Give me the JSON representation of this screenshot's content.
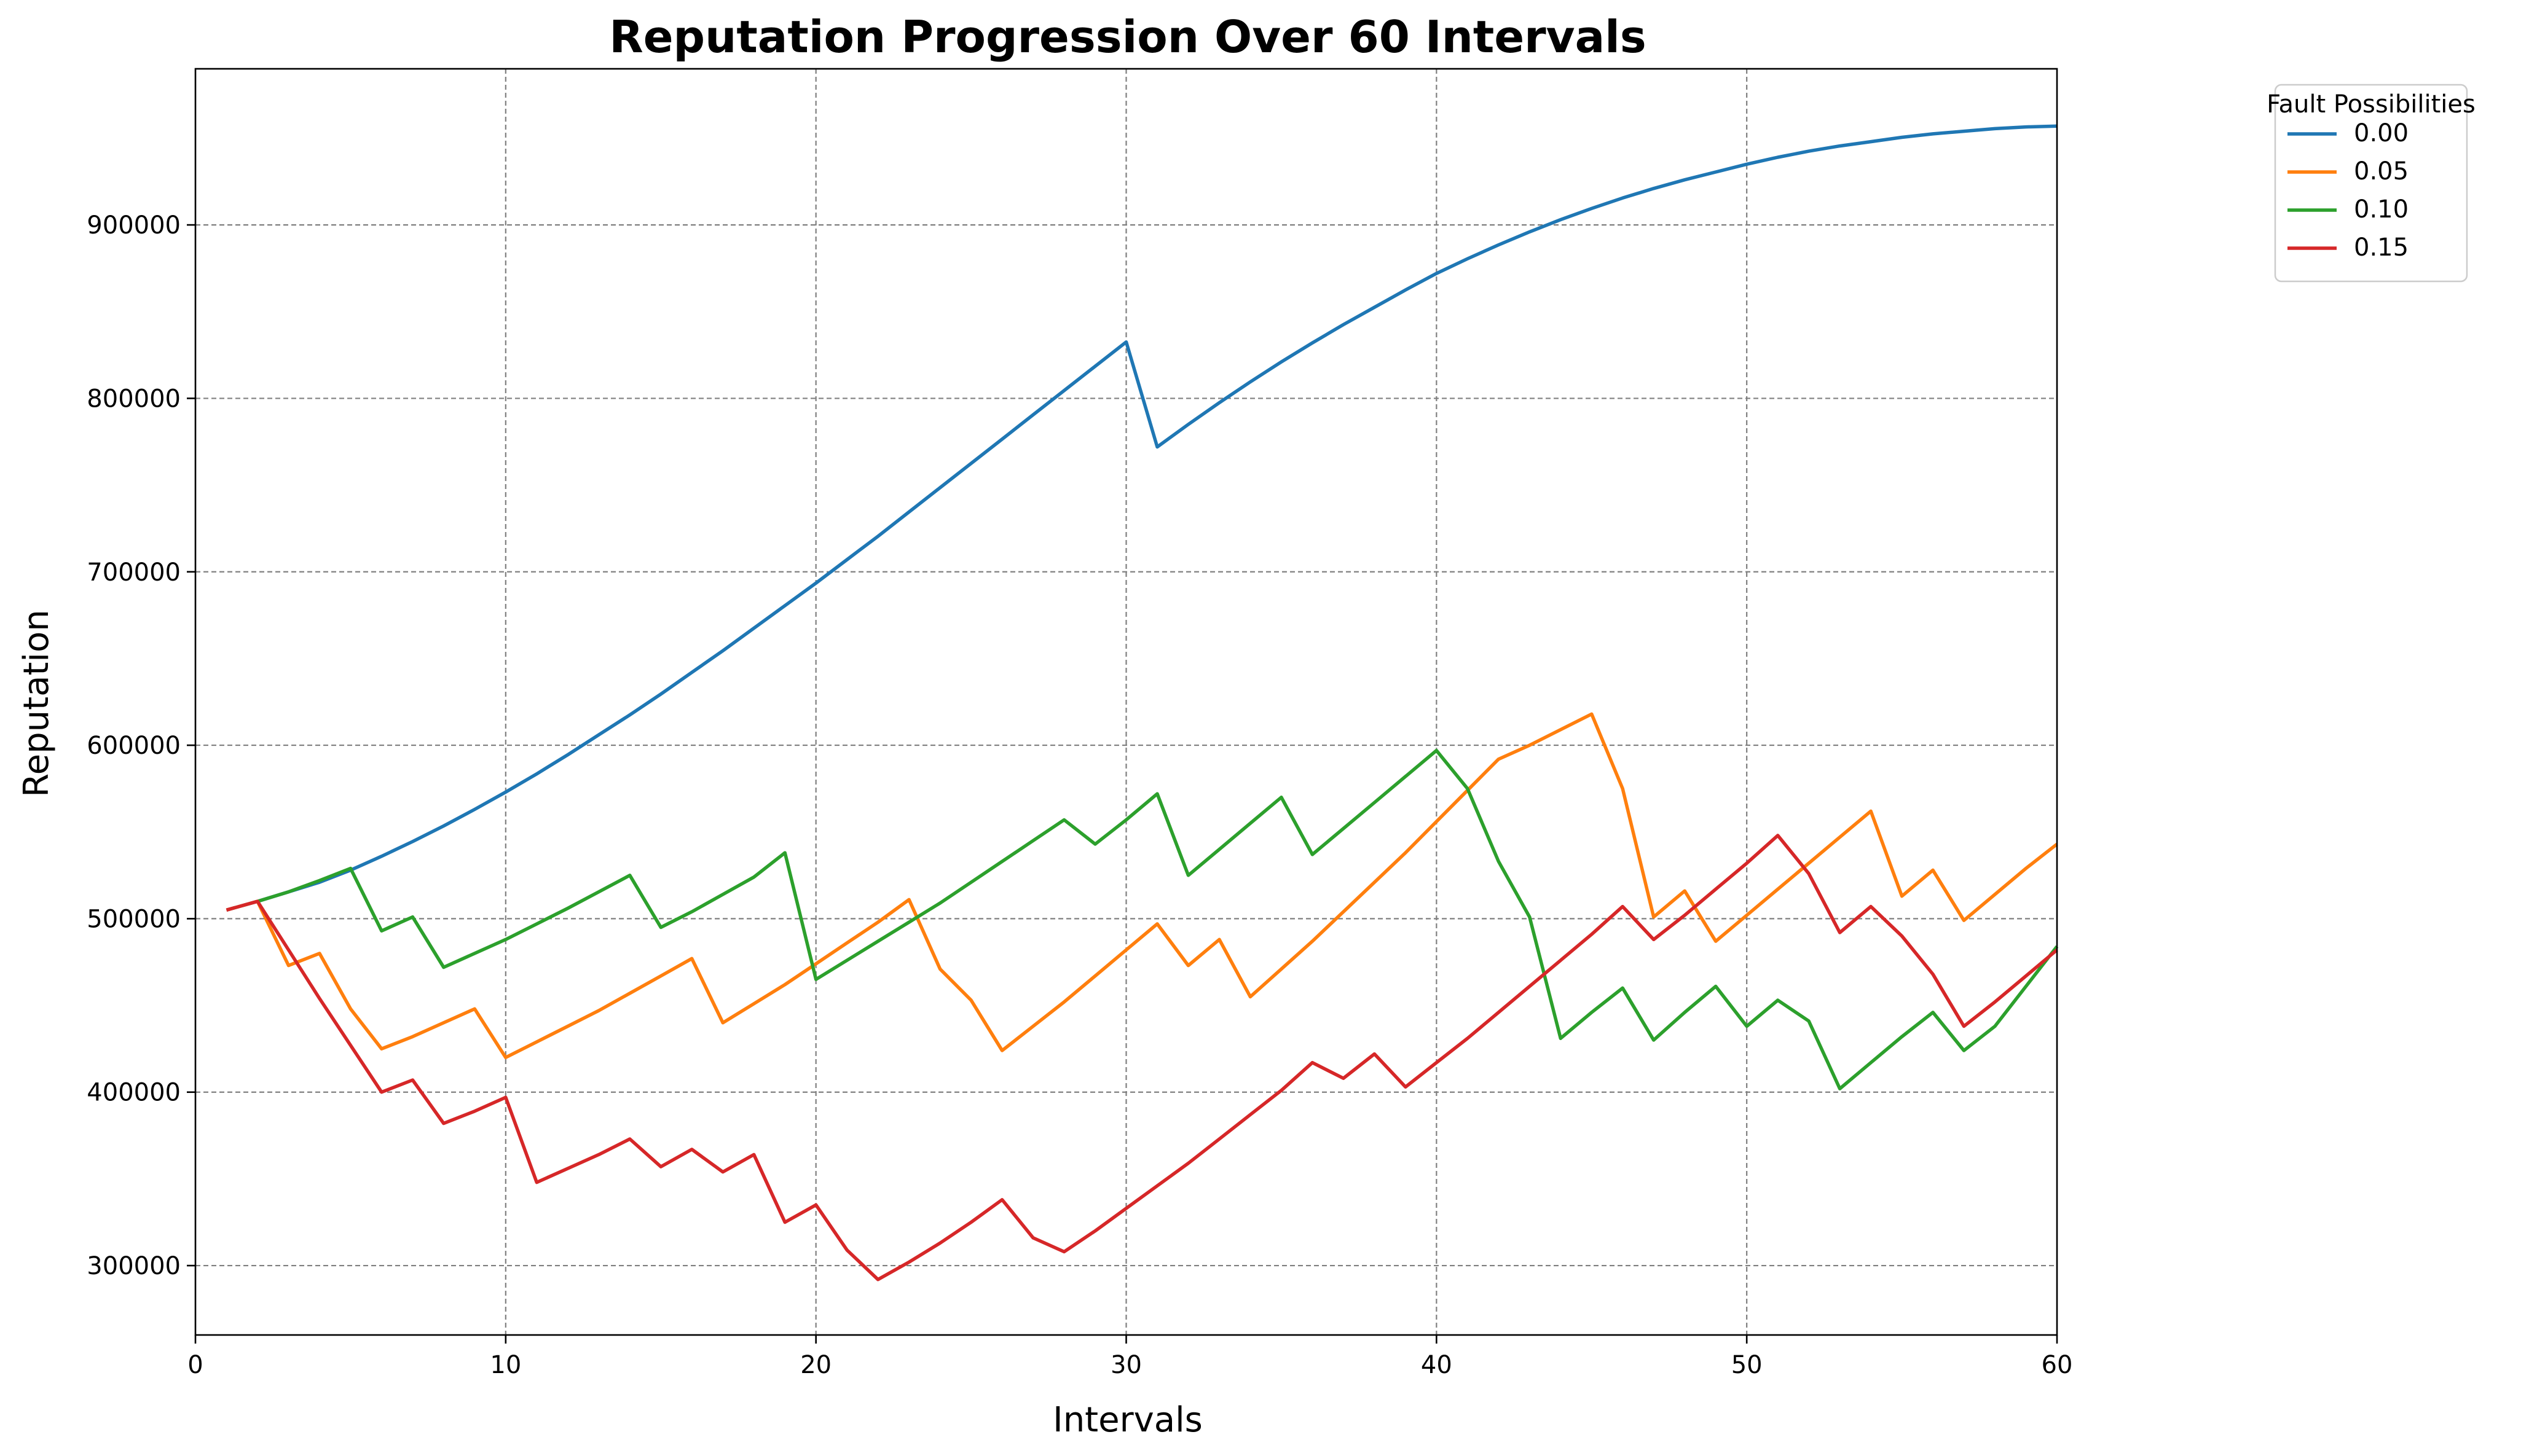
{
  "chart_data": {
    "type": "line",
    "title": "Reputation Progression Over 60 Intervals",
    "xlabel": "Intervals",
    "ylabel": "Reputation",
    "xlim": [
      0,
      60
    ],
    "ylim": [
      260000,
      990000
    ],
    "xticks": [
      0,
      10,
      20,
      30,
      40,
      50,
      60
    ],
    "yticks": [
      300000,
      400000,
      500000,
      600000,
      700000,
      800000,
      900000
    ],
    "grid": true,
    "legend": {
      "title": "Fault Possibilities",
      "placement": "outside-top-right"
    },
    "series": [
      {
        "name": "0.00",
        "color": "#1f77b4",
        "x": [
          1,
          2,
          3,
          4,
          5,
          6,
          7,
          8,
          9,
          10,
          11,
          12,
          13,
          14,
          15,
          16,
          17,
          18,
          19,
          20,
          21,
          22,
          23,
          24,
          25,
          26,
          27,
          28,
          29,
          30,
          31,
          32,
          33,
          34,
          35,
          36,
          37,
          38,
          39,
          40,
          41,
          42,
          43,
          44,
          45,
          46,
          47,
          48,
          49,
          50,
          51,
          52,
          53,
          54,
          55,
          56,
          57,
          58,
          59,
          60
        ],
        "y": [
          505000,
          510000,
          515500,
          521000,
          528000,
          536000,
          544500,
          553500,
          563000,
          573000,
          583500,
          594500,
          606000,
          617500,
          629500,
          642000,
          654500,
          667500,
          680500,
          693500,
          707000,
          720500,
          734500,
          748500,
          762500,
          776500,
          790500,
          804500,
          818500,
          832500,
          772000,
          785000,
          797500,
          809500,
          821000,
          832000,
          842500,
          852500,
          862500,
          872000,
          880500,
          888500,
          896000,
          903000,
          909500,
          915500,
          921000,
          926000,
          930500,
          935000,
          939000,
          942500,
          945500,
          948000,
          950500,
          952500,
          954000,
          955500,
          956500,
          957000
        ]
      },
      {
        "name": "0.05",
        "color": "#ff7f0e",
        "x": [
          1,
          2,
          3,
          4,
          5,
          6,
          7,
          8,
          9,
          10,
          11,
          12,
          13,
          14,
          15,
          16,
          17,
          18,
          19,
          20,
          21,
          22,
          23,
          24,
          25,
          26,
          27,
          28,
          29,
          30,
          31,
          32,
          33,
          34,
          35,
          36,
          37,
          38,
          39,
          40,
          41,
          42,
          43,
          44,
          45,
          46,
          47,
          48,
          49,
          50,
          51,
          52,
          53,
          54,
          55,
          56,
          57,
          58,
          59,
          60
        ],
        "y": [
          505000,
          510000,
          473000,
          480000,
          448000,
          425000,
          432000,
          440000,
          448000,
          420000,
          429000,
          438000,
          447000,
          457000,
          467000,
          477000,
          440000,
          451000,
          462000,
          474000,
          486000,
          498000,
          511000,
          471000,
          453000,
          424000,
          438000,
          452000,
          467000,
          482000,
          497000,
          473000,
          488000,
          455000,
          471000,
          487000,
          504000,
          521000,
          538000,
          556000,
          574000,
          592000,
          600000,
          609000,
          618000,
          575000,
          501000,
          516000,
          487000,
          502000,
          517000,
          532000,
          547000,
          562000,
          513000,
          528000,
          499000,
          514000,
          529000,
          543000
        ]
      },
      {
        "name": "0.10",
        "color": "#2ca02c",
        "x": [
          2,
          3,
          4,
          5,
          6,
          7,
          8,
          9,
          10,
          11,
          12,
          13,
          14,
          15,
          16,
          17,
          18,
          19,
          20,
          21,
          22,
          23,
          24,
          25,
          26,
          27,
          28,
          29,
          30,
          31,
          32,
          33,
          34,
          35,
          36,
          37,
          38,
          39,
          40,
          41,
          42,
          43,
          44,
          45,
          46,
          47,
          48,
          49,
          50,
          51,
          52,
          53,
          54,
          55,
          56,
          57,
          58,
          59,
          60
        ],
        "y": [
          510000,
          515500,
          522000,
          529000,
          493000,
          501000,
          472000,
          480000,
          488000,
          497000,
          506000,
          515500,
          525000,
          495000,
          504000,
          514000,
          524000,
          538000,
          465000,
          476000,
          487000,
          498000,
          509000,
          521000,
          533000,
          545000,
          557000,
          543000,
          557000,
          572000,
          525000,
          540000,
          555000,
          570000,
          537000,
          552000,
          567000,
          582000,
          597000,
          575000,
          533000,
          501000,
          431000,
          446000,
          460000,
          430000,
          446000,
          461000,
          438000,
          453000,
          441000,
          402000,
          417000,
          432000,
          446000,
          424000,
          438000,
          461000,
          484000
        ]
      },
      {
        "name": "0.15",
        "color": "#d62728",
        "x": [
          1,
          2,
          3,
          4,
          5,
          6,
          7,
          8,
          9,
          10,
          11,
          12,
          13,
          14,
          15,
          16,
          17,
          18,
          19,
          20,
          21,
          22,
          23,
          24,
          25,
          26,
          27,
          28,
          29,
          30,
          31,
          32,
          33,
          34,
          35,
          36,
          37,
          38,
          39,
          40,
          41,
          42,
          43,
          44,
          45,
          46,
          47,
          48,
          49,
          50,
          51,
          52,
          53,
          54,
          55,
          56,
          57,
          58,
          59,
          60
        ],
        "y": [
          505000,
          510000,
          482000,
          454000,
          427000,
          400000,
          407000,
          382000,
          389000,
          397000,
          348000,
          356000,
          364000,
          373000,
          357000,
          367000,
          354000,
          364000,
          325000,
          335000,
          309000,
          292000,
          302000,
          313000,
          325000,
          338000,
          316000,
          308000,
          320000,
          333000,
          346000,
          359000,
          373000,
          387000,
          401000,
          417000,
          408000,
          422000,
          403000,
          417000,
          431000,
          446000,
          461000,
          476000,
          491000,
          507000,
          488000,
          502000,
          517000,
          532000,
          548000,
          526000,
          492000,
          507000,
          490000,
          468000,
          438000,
          452000,
          467000,
          482000
        ]
      }
    ]
  }
}
